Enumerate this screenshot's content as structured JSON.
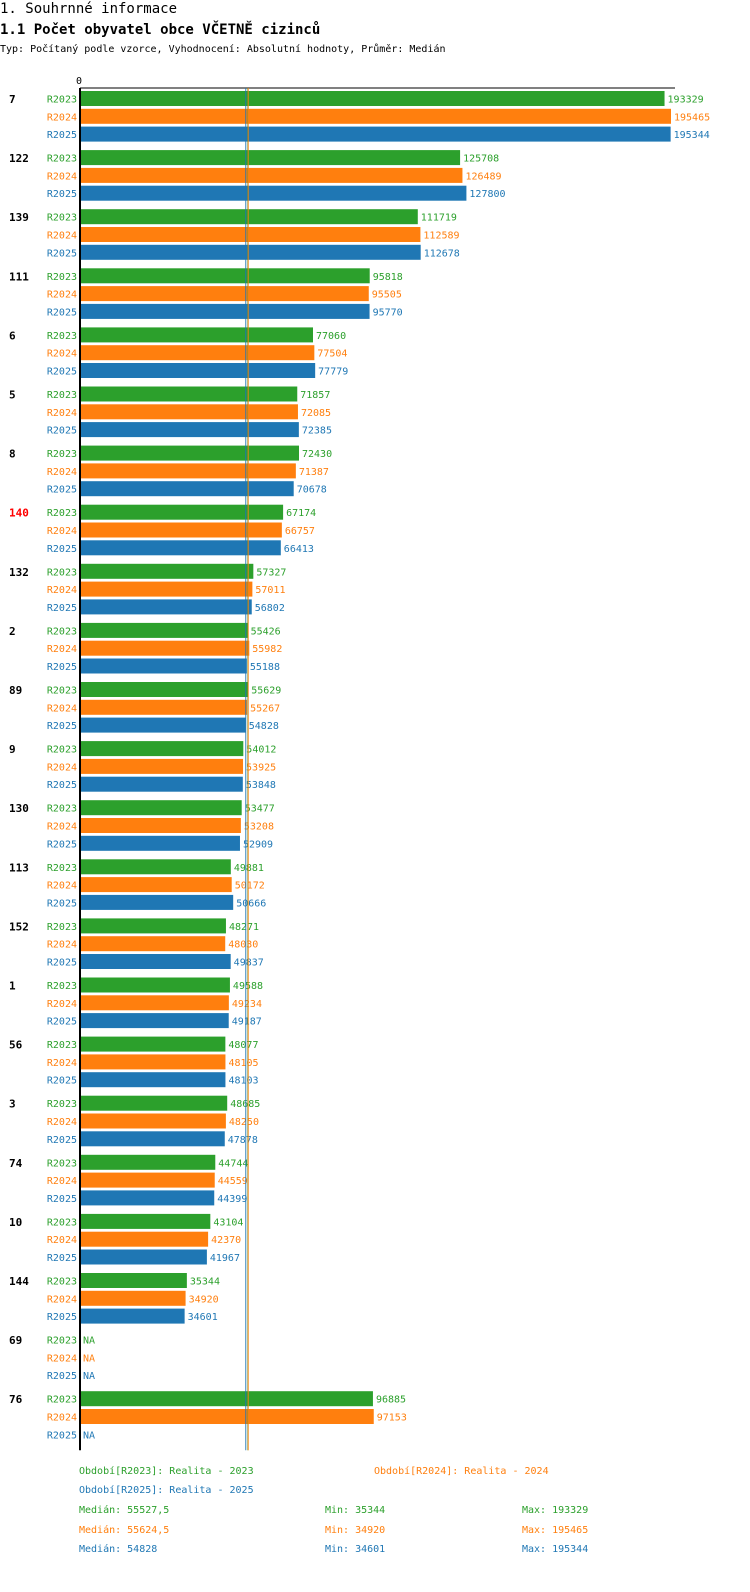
{
  "header": {
    "section_title": "1. Souhrnné informace",
    "chart_title": "1.1 Počet obyvatel obce VČETNĚ cizinců",
    "subtitle": "Typ: Počítaný podle vzorce, Vyhodnocení: Absolutní hodnoty, Průměr: Medián"
  },
  "colors": {
    "R2023": "#2ca02c",
    "R2024": "#ff7f0e",
    "R2025": "#1f77b4",
    "highlight": "#ff0000"
  },
  "chart_data": {
    "type": "bar",
    "orientation": "horizontal",
    "title": "1.1 Počet obyvatel obce VČETNĚ cizinců",
    "axis_zero_label": "0",
    "xlim": [
      0,
      195465
    ],
    "median_lines": [
      55527.5,
      55624.5,
      54828
    ],
    "highlight_category": "140",
    "categories": [
      "7",
      "122",
      "139",
      "111",
      "6",
      "5",
      "8",
      "140",
      "132",
      "2",
      "89",
      "9",
      "130",
      "113",
      "152",
      "1",
      "56",
      "3",
      "74",
      "10",
      "144",
      "69",
      "76"
    ],
    "series": [
      {
        "name": "R2023",
        "values": [
          193329,
          125708,
          111719,
          95818,
          77060,
          71857,
          72430,
          67174,
          57327,
          55426,
          55629,
          54012,
          53477,
          49881,
          48271,
          49588,
          48077,
          48685,
          44744,
          43104,
          35344,
          null,
          96885
        ]
      },
      {
        "name": "R2024",
        "values": [
          195465,
          126489,
          112589,
          95505,
          77504,
          72085,
          71387,
          66757,
          57011,
          55982,
          55267,
          53925,
          53208,
          50172,
          48030,
          49234,
          48105,
          48250,
          44559,
          42370,
          34920,
          null,
          97153
        ]
      },
      {
        "name": "R2025",
        "values": [
          195344,
          127800,
          112678,
          95770,
          77779,
          72385,
          70678,
          66413,
          56802,
          55188,
          54828,
          53848,
          52909,
          50666,
          49837,
          49187,
          48103,
          47878,
          44399,
          41967,
          34601,
          null,
          null
        ]
      }
    ],
    "na_label": "NA"
  },
  "legend": {
    "periods": [
      {
        "series": "R2023",
        "label": "Období[R2023]: Realita - 2023"
      },
      {
        "series": "R2024",
        "label": "Období[R2024]: Realita - 2024"
      },
      {
        "series": "R2025",
        "label": "Období[R2025]: Realita - 2025"
      }
    ],
    "stats": [
      {
        "series": "R2023",
        "median": "Medián: 55527,5",
        "min": "Min: 35344",
        "max": "Max: 193329"
      },
      {
        "series": "R2024",
        "median": "Medián: 55624,5",
        "min": "Min: 34920",
        "max": "Max: 195465"
      },
      {
        "series": "R2025",
        "median": "Medián: 54828",
        "min": "Min: 34601",
        "max": "Max: 195344"
      }
    ]
  }
}
